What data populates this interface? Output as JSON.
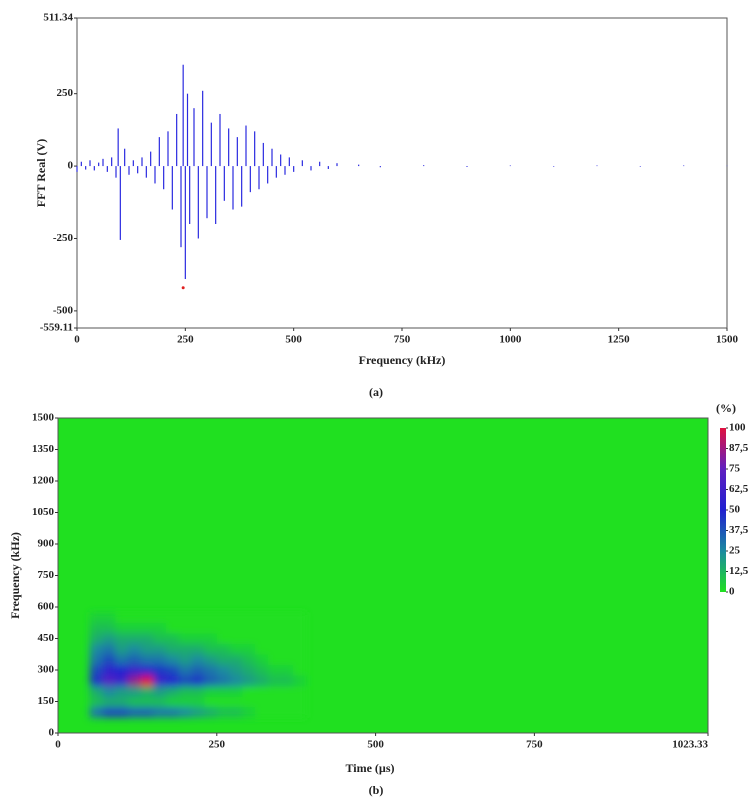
{
  "chart_data": [
    {
      "type": "stem",
      "xlabel": "Frequency (kHz)",
      "ylabel": "FFT Real (V)",
      "caption": "(a)",
      "color": "#2a2ae0",
      "x": [
        0,
        10,
        20,
        30,
        40,
        50,
        60,
        70,
        80,
        90,
        95,
        100,
        110,
        120,
        130,
        140,
        150,
        160,
        170,
        180,
        190,
        200,
        210,
        220,
        230,
        240,
        245,
        250,
        255,
        260,
        270,
        280,
        290,
        300,
        310,
        320,
        330,
        340,
        350,
        360,
        370,
        380,
        390,
        400,
        410,
        420,
        430,
        440,
        450,
        460,
        470,
        480,
        490,
        500,
        520,
        540,
        560,
        580,
        600,
        650,
        700,
        800,
        900,
        1000,
        1100,
        1200,
        1300,
        1400,
        1500
      ],
      "values": [
        -20,
        15,
        -12,
        20,
        -15,
        12,
        25,
        -20,
        30,
        -40,
        130,
        -255,
        60,
        -30,
        20,
        -25,
        30,
        -40,
        50,
        -60,
        100,
        -80,
        120,
        -150,
        180,
        -280,
        350,
        -390,
        250,
        -200,
        200,
        -250,
        260,
        -180,
        150,
        -200,
        180,
        -120,
        130,
        -150,
        100,
        -140,
        140,
        -90,
        120,
        -80,
        80,
        -60,
        60,
        -40,
        40,
        -30,
        30,
        -20,
        20,
        -15,
        15,
        -10,
        10,
        5,
        -4,
        3,
        -3,
        2,
        -2,
        2,
        -2,
        2,
        1
      ],
      "marker": {
        "x": 245,
        "y": -420,
        "color": "#e02020"
      },
      "xlim": [
        0,
        1500
      ],
      "xticks": [
        0,
        250,
        500,
        750,
        1000,
        1250,
        1500
      ],
      "ylim": [
        -559.11,
        511.34
      ],
      "yticks": [
        -559.11,
        -500,
        -250,
        0,
        250,
        511.34
      ]
    },
    {
      "type": "heatmap",
      "xlabel": "Time (µs)",
      "ylabel": "Frequency (kHz)",
      "caption": "(b)",
      "colorbar_label": "(%)",
      "x": [
        60,
        80,
        100,
        120,
        140,
        160,
        180,
        200,
        220,
        240,
        260,
        280,
        300,
        320,
        340,
        360,
        380
      ],
      "y": [
        100,
        150,
        200,
        250,
        300,
        350,
        400,
        450,
        500,
        550
      ],
      "z": [
        [
          30,
          40,
          40,
          35,
          35,
          30,
          30,
          25,
          20,
          15,
          10,
          10,
          5,
          0,
          0,
          0,
          0
        ],
        [
          10,
          15,
          15,
          10,
          10,
          10,
          5,
          5,
          5,
          0,
          0,
          0,
          0,
          0,
          0,
          0,
          0
        ],
        [
          15,
          25,
          20,
          20,
          15,
          20,
          15,
          10,
          10,
          5,
          5,
          5,
          0,
          0,
          0,
          0,
          0
        ],
        [
          45,
          70,
          60,
          85,
          100,
          60,
          50,
          40,
          45,
          35,
          30,
          25,
          20,
          15,
          10,
          10,
          5
        ],
        [
          40,
          55,
          50,
          60,
          55,
          45,
          40,
          30,
          35,
          30,
          25,
          20,
          15,
          10,
          5,
          5,
          0
        ],
        [
          30,
          40,
          30,
          35,
          30,
          30,
          25,
          20,
          25,
          20,
          15,
          15,
          10,
          5,
          0,
          0,
          0
        ],
        [
          25,
          30,
          20,
          25,
          20,
          20,
          15,
          15,
          15,
          10,
          10,
          5,
          5,
          0,
          0,
          0,
          0
        ],
        [
          15,
          20,
          15,
          15,
          15,
          10,
          10,
          5,
          5,
          5,
          0,
          0,
          0,
          0,
          0,
          0,
          0
        ],
        [
          10,
          10,
          5,
          5,
          5,
          5,
          0,
          0,
          0,
          0,
          0,
          0,
          0,
          0,
          0,
          0,
          0
        ],
        [
          5,
          5,
          0,
          0,
          0,
          0,
          0,
          0,
          0,
          0,
          0,
          0,
          0,
          0,
          0,
          0,
          0
        ]
      ],
      "colors": [
        "#20e020",
        "#1a8aa0",
        "#2020d0",
        "#6020c0",
        "#e01040"
      ],
      "zlim": [
        0,
        100
      ],
      "zticks": [
        0,
        {
          "value": 12.5,
          "label": "12,5"
        },
        25,
        {
          "value": 37.5,
          "label": "37,5"
        },
        50,
        {
          "value": 62.5,
          "label": "62,5"
        },
        75,
        {
          "value": 87.5,
          "label": "87,5"
        },
        100
      ],
      "xlim": [
        0,
        1023.33
      ],
      "xticks": [
        0,
        250,
        500,
        750,
        1023.33
      ],
      "ylim": [
        0,
        1500
      ],
      "yticks": [
        0,
        150,
        300,
        450,
        600,
        750,
        900,
        1050,
        1200,
        1350,
        1500
      ]
    }
  ]
}
